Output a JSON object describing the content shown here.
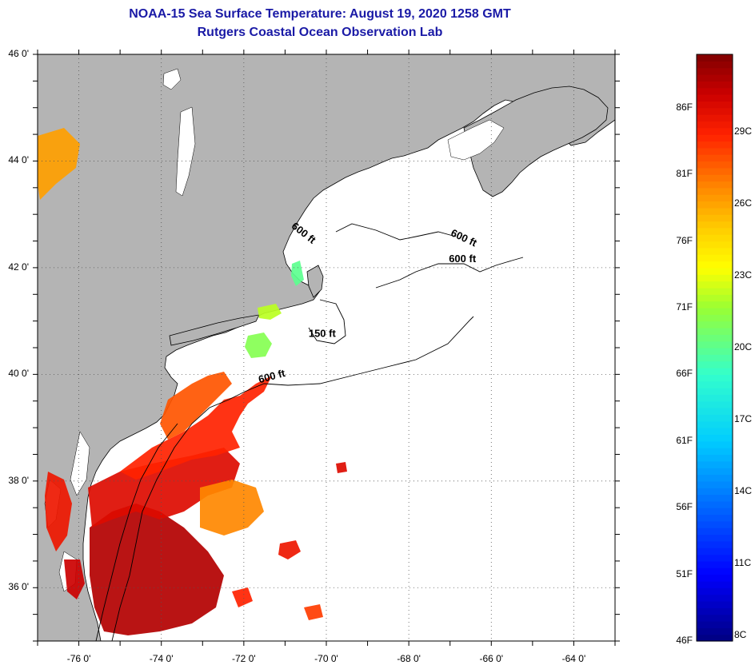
{
  "title": {
    "line1": "NOAA-15 Sea Surface Temperature:  August 19, 2020 1258 GMT",
    "line2": "Rutgers Coastal Ocean Observation Lab"
  },
  "map": {
    "lon_range": [
      -77,
      -63
    ],
    "lat_range": [
      35,
      46
    ],
    "land_color": "#b4b4b4",
    "grid": "dotted",
    "lat_ticks": [
      {
        "lat": 46,
        "label": "46 0'"
      },
      {
        "lat": 44,
        "label": "44 0'"
      },
      {
        "lat": 42,
        "label": "42 0'"
      },
      {
        "lat": 40,
        "label": "40 0'"
      },
      {
        "lat": 38,
        "label": "38 0'"
      },
      {
        "lat": 36,
        "label": "36 0'"
      }
    ],
    "lon_ticks": [
      {
        "lon": -76,
        "label": "-76 0'"
      },
      {
        "lon": -74,
        "label": "-74 0'"
      },
      {
        "lon": -72,
        "label": "-72 0'"
      },
      {
        "lon": -70,
        "label": "-70 0'"
      },
      {
        "lon": -68,
        "label": "-68 0'"
      },
      {
        "lon": -66,
        "label": "-66 0'"
      },
      {
        "lon": -64,
        "label": "-64 0'"
      }
    ],
    "contour_labels": [
      {
        "text": "600 ft",
        "lon": -70.6,
        "lat": 42.6,
        "angle": 38
      },
      {
        "text": "600 ft",
        "lon": -66.7,
        "lat": 42.5,
        "angle": 25
      },
      {
        "text": "600 ft",
        "lon": -66.7,
        "lat": 42.1,
        "angle": 0
      },
      {
        "text": "150 ft",
        "lon": -70.1,
        "lat": 40.7,
        "angle": 0
      },
      {
        "text": "600 ft",
        "lon": -71.3,
        "lat": 39.9,
        "angle": -15
      }
    ]
  },
  "colorbar": {
    "min_f": 46,
    "max_f": 90,
    "f_labels": [
      "86F",
      "81F",
      "76F",
      "71F",
      "66F",
      "61F",
      "56F",
      "51F",
      "46F"
    ],
    "c_labels": [
      "29C",
      "26C",
      "23C",
      "20C",
      "17C",
      "14C",
      "11C",
      "8C"
    ],
    "f_values": [
      86,
      81,
      76,
      71,
      66,
      61,
      56,
      51,
      46
    ],
    "c_values": [
      29,
      26,
      23,
      20,
      17,
      14,
      11,
      8
    ]
  }
}
